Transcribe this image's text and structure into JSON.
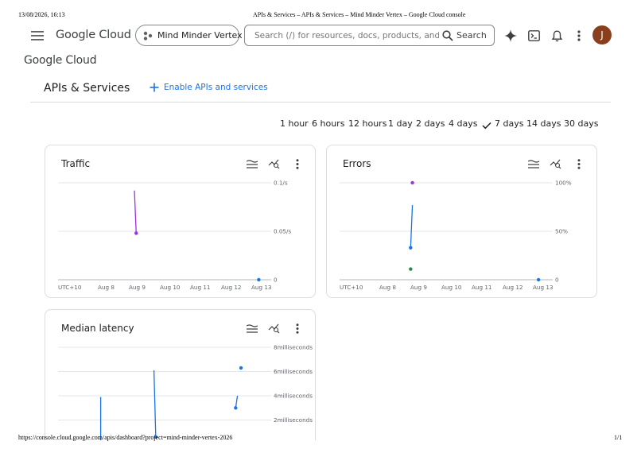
{
  "print_header": {
    "datetime": "13/08/2026, 16:13",
    "doc_title": "APIs & Services – APIs & Services – Mind Minder Vertex – Google Cloud console"
  },
  "print_footer": {
    "url": "https://console.cloud.google.com/apis/dashboard?project=mind-minder-vertex-2026",
    "page": "1/1"
  },
  "topbar": {
    "logo_text": "Google Cloud",
    "project_name": "Mind Minder Vertex",
    "search_placeholder": "Search (/) for resources, docs, products, and more",
    "search_button": "Search",
    "avatar_letter": "J"
  },
  "secondary_logo": "Google Cloud",
  "page": {
    "title": "APIs & Services",
    "enable_button": "Enable APIs and services"
  },
  "time_ranges": {
    "options": [
      "1 hour",
      "6 hours",
      "12 hours",
      "1 day",
      "2 days",
      "4 days",
      "7 days",
      "14 days",
      "30 days"
    ],
    "selected": "7 days"
  },
  "colors": {
    "accent": "#1a73e8",
    "purple": "#9334e6",
    "grid": "#dadce0"
  },
  "chart_data": [
    {
      "type": "line",
      "title": "Traffic",
      "x_ticks": [
        "UTC+10",
        "Aug 8",
        "Aug 9",
        "Aug 10",
        "Aug 11",
        "Aug 12",
        "Aug 13"
      ],
      "y_ticks": [
        "0.1/s",
        "0.05/s",
        "0"
      ],
      "ylim": [
        0,
        0.1
      ],
      "series": [
        {
          "color": "#9334e6",
          "points": [
            [
              9.55,
              0.092
            ],
            [
              9.6,
              0.048
            ]
          ]
        },
        {
          "color": "#1a73e8",
          "points": [
            [
              13.05,
              0.0
            ]
          ]
        }
      ]
    },
    {
      "type": "line",
      "title": "Errors",
      "x_ticks": [
        "UTC+10",
        "Aug 8",
        "Aug 9",
        "Aug 10",
        "Aug 11",
        "Aug 12",
        "Aug 13"
      ],
      "y_ticks": [
        "100%",
        "50%",
        "0"
      ],
      "ylim": [
        0,
        100
      ],
      "series": [
        {
          "color": "#9334e6",
          "points": [
            [
              9.45,
              100
            ]
          ]
        },
        {
          "color": "#1a73e8",
          "points": [
            [
              9.45,
              77
            ],
            [
              9.4,
              33
            ]
          ]
        },
        {
          "color": "#1e8e3e",
          "points": [
            [
              9.4,
              11
            ]
          ]
        },
        {
          "color": "#1a73e8",
          "points": [
            [
              13.0,
              0
            ]
          ]
        }
      ]
    },
    {
      "type": "line",
      "title": "Median latency",
      "x_ticks": [],
      "y_ticks": [
        "8milliseconds",
        "6milliseconds",
        "4milliseconds",
        "2milliseconds"
      ],
      "ylim": [
        0,
        8
      ],
      "series": [
        {
          "color": "#1a73e8",
          "points": [
            [
              8.6,
              3.9
            ],
            [
              8.6,
              0
            ]
          ]
        },
        {
          "color": "#1a73e8",
          "points": [
            [
              10.1,
              6.1
            ],
            [
              10.15,
              0.6
            ]
          ]
        },
        {
          "color": "#1a73e8",
          "points": [
            [
              12.45,
              4.0
            ],
            [
              12.4,
              3.0
            ]
          ]
        },
        {
          "color": "#1a73e8",
          "points": [
            [
              12.55,
              6.3
            ]
          ]
        }
      ]
    }
  ]
}
